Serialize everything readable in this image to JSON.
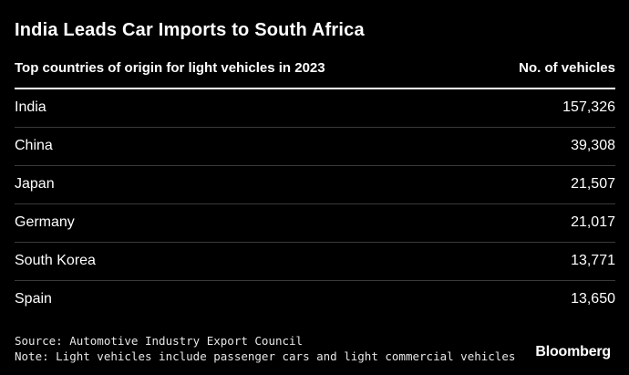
{
  "chart_data": {
    "type": "table",
    "title": "India Leads Car Imports to South Africa",
    "subtitle": "Top countries of origin for light vehicles in 2023",
    "columns": [
      "Top countries of origin for light vehicles in 2023",
      "No. of vehicles"
    ],
    "value_header": "No. of vehicles",
    "rows": [
      {
        "country": "India",
        "value": 157326,
        "value_label": "157,326"
      },
      {
        "country": "China",
        "value": 39308,
        "value_label": "39,308"
      },
      {
        "country": "Japan",
        "value": 21507,
        "value_label": "21,507"
      },
      {
        "country": "Germany",
        "value": 21017,
        "value_label": "21,017"
      },
      {
        "country": "South Korea",
        "value": 13771,
        "value_label": "13,771"
      },
      {
        "country": "Spain",
        "value": 13650,
        "value_label": "13,650"
      }
    ],
    "source": "Source: Automotive Industry Export Council",
    "note": "Note: Light vehicles include passenger cars and light commercial vehicles"
  },
  "brand": "Bloomberg",
  "colors": {
    "background": "#000000",
    "text": "#ffffff",
    "rule": "#ffffff",
    "row_divider": "#3a3a3a"
  }
}
